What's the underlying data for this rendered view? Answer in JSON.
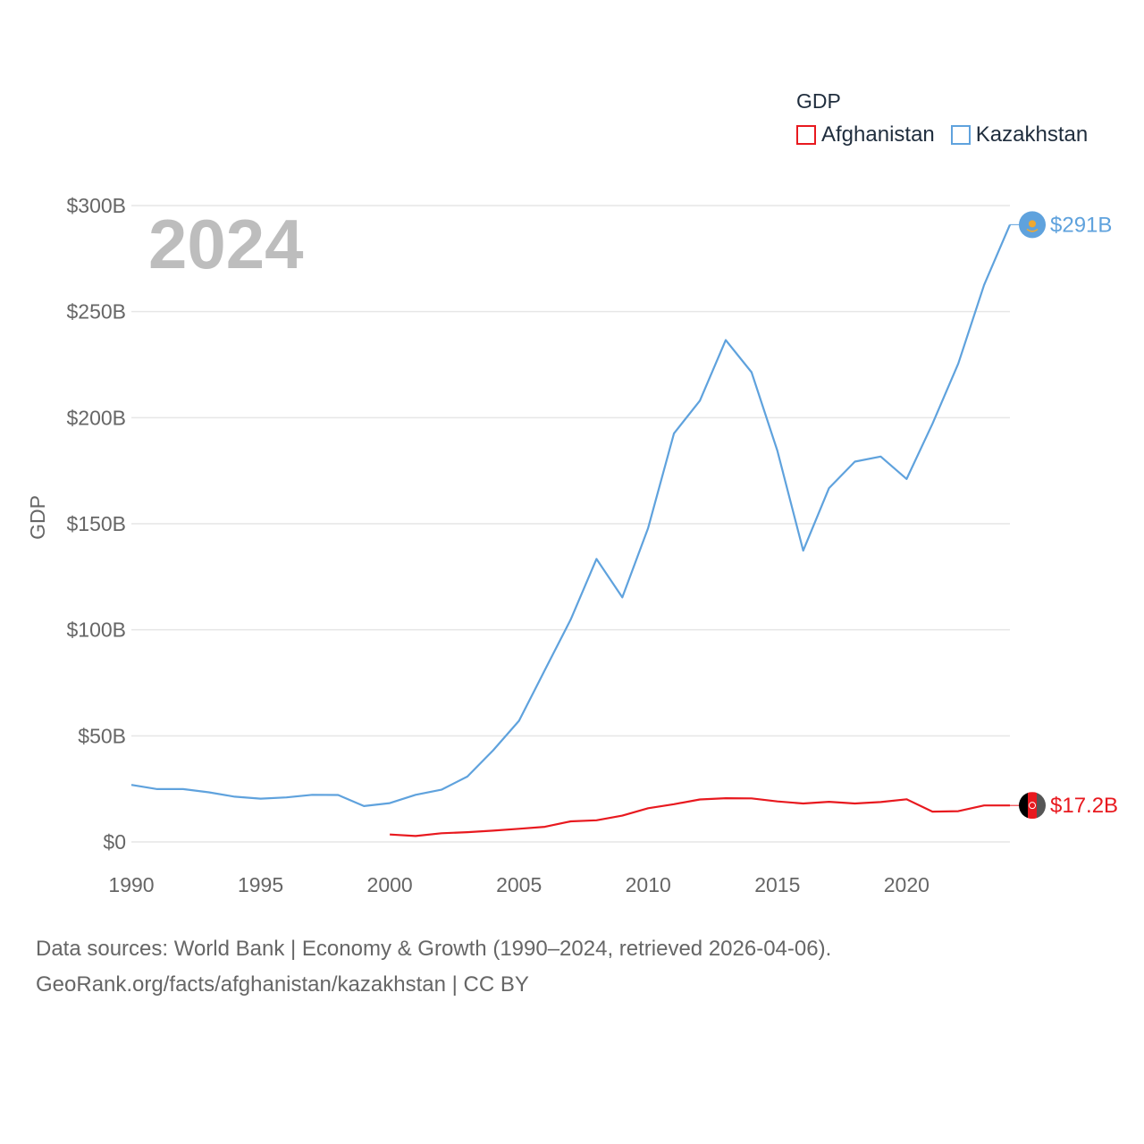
{
  "chart_data": {
    "type": "line",
    "year_label": "2024",
    "ylabel": "GDP",
    "yticks": [
      {
        "value": 0,
        "label": "$0"
      },
      {
        "value": 50,
        "label": "$50B"
      },
      {
        "value": 100,
        "label": "$100B"
      },
      {
        "value": 150,
        "label": "$150B"
      },
      {
        "value": 200,
        "label": "$200B"
      },
      {
        "value": 250,
        "label": "$250B"
      },
      {
        "value": 300,
        "label": "$300B"
      }
    ],
    "xticks": [
      1990,
      1995,
      2000,
      2005,
      2010,
      2015,
      2020
    ],
    "xlim": [
      1990,
      2024
    ],
    "ylim": [
      0,
      300
    ],
    "legend_title": "GDP",
    "legend_position": "top-right",
    "series": [
      {
        "name": "Afghanistan",
        "color": "#e8191f",
        "end_label": "$17.2B",
        "points": [
          [
            2000,
            3.5
          ],
          [
            2001,
            2.8
          ],
          [
            2002,
            4.1
          ],
          [
            2003,
            4.6
          ],
          [
            2004,
            5.3
          ],
          [
            2005,
            6.2
          ],
          [
            2006,
            7.1
          ],
          [
            2007,
            9.7
          ],
          [
            2008,
            10.2
          ],
          [
            2009,
            12.4
          ],
          [
            2010,
            15.9
          ],
          [
            2011,
            17.8
          ],
          [
            2012,
            20.0
          ],
          [
            2013,
            20.6
          ],
          [
            2014,
            20.5
          ],
          [
            2015,
            19.1
          ],
          [
            2016,
            18.1
          ],
          [
            2017,
            18.9
          ],
          [
            2018,
            18.1
          ],
          [
            2019,
            18.8
          ],
          [
            2020,
            20.1
          ],
          [
            2021,
            14.3
          ],
          [
            2022,
            14.5
          ],
          [
            2023,
            17.2
          ],
          [
            2024,
            17.2
          ]
        ]
      },
      {
        "name": "Kazakhstan",
        "color": "#5fa2dd",
        "end_label": "$291B",
        "points": [
          [
            1990,
            26.9
          ],
          [
            1991,
            24.9
          ],
          [
            1992,
            24.9
          ],
          [
            1993,
            23.4
          ],
          [
            1994,
            21.3
          ],
          [
            1995,
            20.4
          ],
          [
            1996,
            21.0
          ],
          [
            1997,
            22.2
          ],
          [
            1998,
            22.1
          ],
          [
            1999,
            16.9
          ],
          [
            2000,
            18.3
          ],
          [
            2001,
            22.2
          ],
          [
            2002,
            24.6
          ],
          [
            2003,
            30.8
          ],
          [
            2004,
            43.2
          ],
          [
            2005,
            57.1
          ],
          [
            2006,
            81.0
          ],
          [
            2007,
            104.8
          ],
          [
            2008,
            133.4
          ],
          [
            2009,
            115.3
          ],
          [
            2010,
            148.0
          ],
          [
            2011,
            192.6
          ],
          [
            2012,
            208.0
          ],
          [
            2013,
            236.6
          ],
          [
            2014,
            221.4
          ],
          [
            2015,
            184.4
          ],
          [
            2016,
            137.3
          ],
          [
            2017,
            166.8
          ],
          [
            2018,
            179.3
          ],
          [
            2019,
            181.7
          ],
          [
            2020,
            171.1
          ],
          [
            2021,
            197.1
          ],
          [
            2022,
            225.5
          ],
          [
            2023,
            262.6
          ],
          [
            2024,
            291.0
          ]
        ]
      }
    ]
  },
  "source": {
    "line1": "Data sources: World Bank | Economy & Growth (1990–2024, retrieved 2026-04-06).",
    "line2": "GeoRank.org/facts/afghanistan/kazakhstan | CC BY"
  }
}
